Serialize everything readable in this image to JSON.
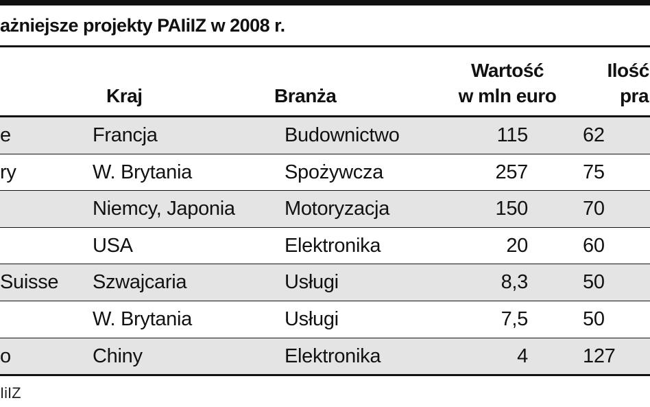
{
  "title": "ażniejsze projekty PAIiIZ w 2008 r.",
  "table": {
    "header": [
      [],
      [
        "Kraj"
      ],
      [
        "Branża"
      ],
      [
        "Wartość",
        "w mln euro"
      ],
      [
        "Ilość r",
        "pra"
      ]
    ],
    "rows": [
      [
        "e",
        "Francja",
        "Budownictwo",
        "115",
        "62"
      ],
      [
        "ry",
        "W. Brytania",
        "Spożywcza",
        "257",
        "75"
      ],
      [
        "",
        "Niemcy, Japonia",
        "Motoryzacja",
        "150",
        "70"
      ],
      [
        "",
        "USA",
        "Elektronika",
        "20",
        "60"
      ],
      [
        "Suisse",
        "Szwajcaria",
        "Usługi",
        "8,3",
        "50"
      ],
      [
        "",
        "W. Brytania",
        "Usługi",
        "7,5",
        "50"
      ],
      [
        "o",
        "Chiny",
        "Elektronika",
        "4",
        "127"
      ]
    ]
  },
  "source": "IiIZ"
}
